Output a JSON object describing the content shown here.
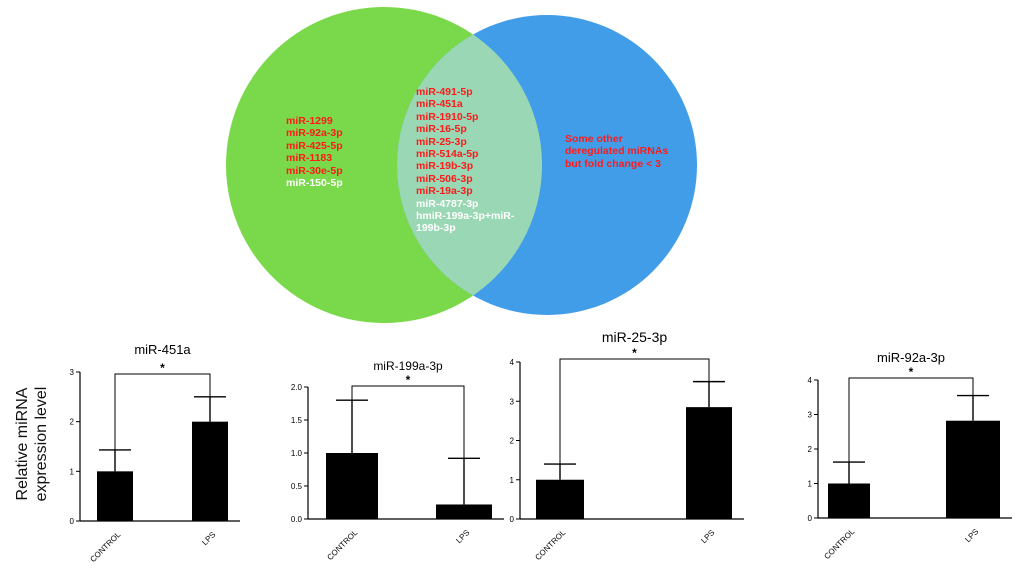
{
  "venn": {
    "left_color": "#7ad94a",
    "right_color": "#429de9",
    "overlap_color": "#9ad8b5",
    "left_items": [
      {
        "text": "miR-1299",
        "color": "#ff1a1a"
      },
      {
        "text": "miR-92a-3p",
        "color": "#ff1a1a"
      },
      {
        "text": "miR-425-5p",
        "color": "#ff1a1a"
      },
      {
        "text": "miR-1183",
        "color": "#ff1a1a"
      },
      {
        "text": "miR-30e-5p",
        "color": "#ff1a1a"
      },
      {
        "text": "miR-150-5p",
        "color": "#ffffff"
      }
    ],
    "center_items": [
      {
        "text": "miR-491-5p",
        "color": "#ff1a1a"
      },
      {
        "text": "miR-451a",
        "color": "#ff1a1a"
      },
      {
        "text": "miR-1910-5p",
        "color": "#ff1a1a"
      },
      {
        "text": "miR-16-5p",
        "color": "#ff1a1a"
      },
      {
        "text": "miR-25-3p",
        "color": "#ff1a1a"
      },
      {
        "text": "miR-514a-5p",
        "color": "#ff1a1a"
      },
      {
        "text": "miR-19b-3p",
        "color": "#ff1a1a"
      },
      {
        "text": "miR-506-3p",
        "color": "#ff1a1a"
      },
      {
        "text": "miR-19a-3p",
        "color": "#ff1a1a"
      },
      {
        "text": "miR-4787-3p",
        "color": "#ffffff"
      },
      {
        "text": "hmiR-199a-3p+miR-",
        "color": "#ffffff"
      },
      {
        "text": "199b-3p",
        "color": "#ffffff"
      }
    ],
    "right_items": [
      {
        "text": "Some other deregulated miRNAs but fold change < 3",
        "color": "#ff1a1a"
      }
    ]
  },
  "shared_ylabel": [
    "Relative miRNA",
    "expression level"
  ],
  "chart_data": [
    {
      "type": "bar",
      "title": "miR-451a",
      "categories": [
        "CONTROL",
        "LPS"
      ],
      "values": [
        1.0,
        2.0
      ],
      "error_upper": [
        1.43,
        2.5
      ],
      "ylim": [
        0,
        3
      ],
      "yticks": [
        "0",
        "1",
        "2",
        "3"
      ],
      "significance": "*"
    },
    {
      "type": "bar",
      "title": "miR-199a-3p",
      "categories": [
        "CONTROL",
        "LPS"
      ],
      "values": [
        1.0,
        0.22
      ],
      "error_upper": [
        1.8,
        0.92
      ],
      "ylim": [
        0,
        2.0
      ],
      "yticks": [
        "0.0",
        "0.5",
        "1.0",
        "1.5",
        "2.0"
      ],
      "significance": "*"
    },
    {
      "type": "bar",
      "title": "miR-25-3p",
      "categories": [
        "CONTROL",
        "LPS"
      ],
      "values": [
        1.0,
        2.85
      ],
      "error_upper": [
        1.4,
        3.5
      ],
      "ylim": [
        0,
        4
      ],
      "yticks": [
        "0",
        "1",
        "2",
        "3",
        "4"
      ],
      "significance": "*"
    },
    {
      "type": "bar",
      "title": "miR-92a-3p",
      "categories": [
        "CONTROL",
        "LPS"
      ],
      "values": [
        1.0,
        2.82
      ],
      "error_upper": [
        1.62,
        3.55
      ],
      "ylim": [
        0,
        4
      ],
      "yticks": [
        "0",
        "1",
        "2",
        "3",
        "4"
      ],
      "significance": "*"
    }
  ]
}
